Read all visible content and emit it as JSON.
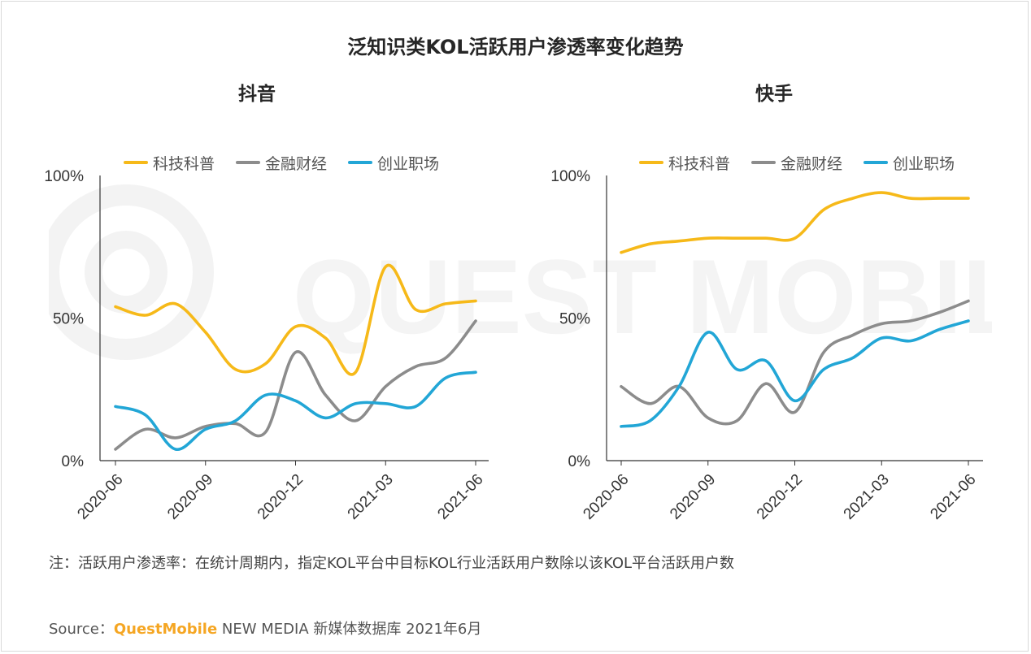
{
  "title": "泛知识类KOL活跃用户渗透率变化趋势",
  "watermark_text": "QUEST MOBILE",
  "colors": {
    "series": [
      "#f6b919",
      "#8c8c8c",
      "#22a6d6"
    ],
    "axis": "#333333"
  },
  "chart_data": [
    {
      "type": "line",
      "title": "抖音",
      "x": [
        "2020-06",
        "2020-07",
        "2020-08",
        "2020-09",
        "2020-10",
        "2020-11",
        "2020-12",
        "2021-01",
        "2021-02",
        "2021-03",
        "2021-04",
        "2021-05",
        "2021-06"
      ],
      "tick_labels": [
        "2020-06",
        "2020-09",
        "2020-12",
        "2021-03",
        "2021-06"
      ],
      "tick_index": [
        0,
        3,
        6,
        9,
        12
      ],
      "yticks": [
        "100%",
        "50%",
        "0%"
      ],
      "ylim": [
        0,
        100
      ],
      "legend": [
        "科技科普",
        "金融财经",
        "创业职场"
      ],
      "series": [
        {
          "name": "科技科普",
          "values": [
            54,
            51,
            55,
            45,
            32,
            34,
            47,
            43,
            31,
            68,
            53,
            55,
            56
          ]
        },
        {
          "name": "金融财经",
          "values": [
            4,
            11,
            8,
            12,
            13,
            10,
            38,
            23,
            14,
            26,
            33,
            36,
            49
          ]
        },
        {
          "name": "创业职场",
          "values": [
            19,
            16,
            4,
            11,
            14,
            23,
            21,
            15,
            20,
            20,
            19,
            29,
            31
          ]
        }
      ]
    },
    {
      "type": "line",
      "title": "快手",
      "x": [
        "2020-06",
        "2020-07",
        "2020-08",
        "2020-09",
        "2020-10",
        "2020-11",
        "2020-12",
        "2021-01",
        "2021-02",
        "2021-03",
        "2021-04",
        "2021-05",
        "2021-06"
      ],
      "tick_labels": [
        "2020-06",
        "2020-09",
        "2020-12",
        "2021-03",
        "2021-06"
      ],
      "tick_index": [
        0,
        3,
        6,
        9,
        12
      ],
      "yticks": [
        "100%",
        "50%",
        "0%"
      ],
      "ylim": [
        0,
        100
      ],
      "legend": [
        "科技科普",
        "金融财经",
        "创业职场"
      ],
      "series": [
        {
          "name": "科技科普",
          "values": [
            73,
            76,
            77,
            78,
            78,
            78,
            78,
            88,
            92,
            94,
            92,
            92,
            92
          ]
        },
        {
          "name": "金融财经",
          "values": [
            26,
            20,
            26,
            15,
            14,
            27,
            17,
            38,
            44,
            48,
            49,
            52,
            56
          ]
        },
        {
          "name": "创业职场",
          "values": [
            12,
            14,
            26,
            45,
            32,
            35,
            21,
            32,
            36,
            43,
            42,
            46,
            49
          ]
        }
      ]
    }
  ],
  "note": "注：活跃用户渗透率：在统计周期内，指定KOL平台中目标KOL行业活跃用户数除以该KOL平台活跃用户数",
  "source": {
    "prefix": "Source：",
    "brand": "QuestMobile",
    "rest": " NEW MEDIA 新媒体数据库 2021年6月"
  }
}
